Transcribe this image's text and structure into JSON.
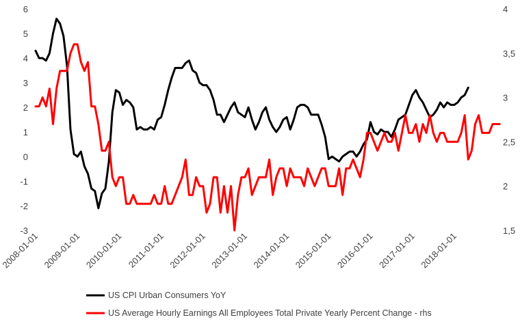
{
  "chart_data": {
    "type": "line",
    "title": "",
    "left_axis": {
      "ticks": [
        "6",
        "5",
        "4",
        "3",
        "2",
        "1",
        "0",
        "-1",
        "-2",
        "-3"
      ],
      "ylim": [
        -3,
        6
      ]
    },
    "right_axis": {
      "ticks": [
        "4",
        "3,5",
        "3",
        "2,5",
        "2",
        "1,5"
      ],
      "ylim": [
        1.5,
        4
      ]
    },
    "x_ticks": [
      "2008-01-01",
      "2009-01-01",
      "2010-01-01",
      "2011-01-01",
      "2012-01-01",
      "2013-01-01",
      "2014-01-01",
      "2015-01-01",
      "2016-01-01",
      "2017-01-01",
      "2018-01-01"
    ],
    "x_start": "2008-01",
    "series": [
      {
        "name": "US CPI Urban Consumers YoY",
        "axis": "left",
        "color": "#000000",
        "values": [
          4.3,
          4.0,
          4.0,
          3.9,
          4.2,
          5.0,
          5.6,
          5.4,
          4.9,
          3.7,
          1.1,
          0.1,
          0.0,
          0.2,
          -0.4,
          -0.7,
          -1.3,
          -1.4,
          -2.1,
          -1.5,
          -1.3,
          -0.2,
          1.8,
          2.7,
          2.6,
          2.1,
          2.3,
          2.2,
          2.0,
          1.1,
          1.2,
          1.1,
          1.1,
          1.2,
          1.1,
          1.5,
          1.6,
          2.1,
          2.7,
          3.2,
          3.6,
          3.6,
          3.6,
          3.8,
          3.9,
          3.5,
          3.4,
          3.0,
          2.9,
          2.9,
          2.7,
          2.3,
          1.7,
          1.7,
          1.4,
          1.7,
          2.0,
          2.2,
          1.8,
          1.7,
          1.6,
          2.0,
          1.5,
          1.1,
          1.4,
          1.8,
          2.0,
          1.5,
          1.2,
          1.0,
          1.2,
          1.5,
          1.6,
          1.1,
          1.5,
          2.0,
          2.1,
          2.1,
          2.0,
          1.7,
          1.7,
          1.7,
          1.3,
          0.8,
          -0.1,
          0.0,
          -0.1,
          -0.2,
          0.0,
          0.1,
          0.2,
          0.2,
          0.0,
          0.2,
          0.5,
          0.7,
          1.4,
          1.0,
          0.9,
          1.1,
          1.0,
          1.0,
          0.8,
          1.1,
          1.5,
          1.6,
          1.7,
          2.1,
          2.5,
          2.7,
          2.4,
          2.2,
          1.9,
          1.6,
          1.7,
          1.9,
          2.2,
          2.0,
          2.2,
          2.1,
          2.1,
          2.2,
          2.4,
          2.5,
          2.8
        ]
      },
      {
        "name": "US Average Hourly Earnings All Employees Total Private Yearly Percent Change - rhs",
        "axis": "right",
        "color": "#ff0000",
        "values": [
          2.9,
          2.9,
          3.0,
          2.9,
          3.1,
          2.7,
          3.1,
          3.3,
          3.3,
          3.3,
          3.5,
          3.6,
          3.6,
          3.4,
          3.3,
          3.4,
          2.9,
          2.9,
          2.7,
          2.4,
          2.4,
          2.5,
          2.1,
          2.0,
          2.1,
          2.1,
          1.8,
          1.8,
          1.9,
          1.8,
          1.8,
          1.8,
          1.8,
          1.8,
          1.9,
          1.8,
          1.8,
          2.0,
          1.8,
          1.8,
          1.9,
          2.0,
          2.1,
          2.3,
          1.9,
          1.9,
          2.1,
          2.0,
          2.0,
          1.7,
          1.8,
          2.1,
          2.1,
          1.7,
          2.0,
          1.7,
          2.0,
          1.5,
          1.9,
          2.1,
          2.1,
          2.2,
          1.9,
          2.0,
          2.1,
          2.1,
          2.1,
          2.3,
          1.9,
          2.1,
          2.2,
          2.2,
          2.0,
          2.2,
          2.1,
          2.1,
          2.1,
          2.0,
          2.2,
          2.1,
          2.0,
          2.1,
          2.2,
          2.2,
          2.0,
          2.0,
          2.0,
          2.2,
          1.9,
          2.2,
          2.2,
          2.3,
          2.2,
          2.1,
          2.3,
          2.6,
          2.6,
          2.5,
          2.4,
          2.5,
          2.6,
          2.5,
          2.5,
          2.6,
          2.4,
          2.6,
          2.8,
          2.6,
          2.6,
          2.7,
          2.5,
          2.7,
          2.6,
          2.8,
          2.6,
          2.5,
          2.6,
          2.6,
          2.5,
          2.5,
          2.5,
          2.5,
          2.6,
          2.8,
          2.3,
          2.4,
          2.7,
          2.8,
          2.6,
          2.6,
          2.6,
          2.7,
          2.7,
          2.7
        ]
      }
    ],
    "legend": [
      "US CPI Urban Consumers YoY",
      "US Average Hourly Earnings All Employees Total Private Yearly Percent Change - rhs"
    ],
    "legend_position": "bottom-left"
  }
}
